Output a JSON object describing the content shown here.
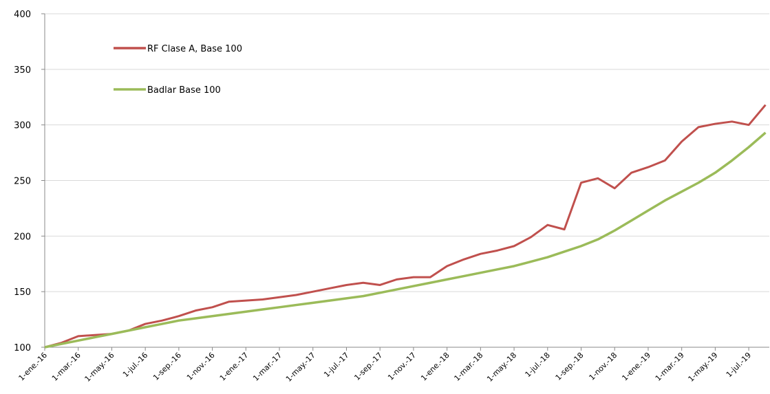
{
  "chart_data": {
    "type": "line",
    "categories": [
      "1-ene.-16",
      null,
      "1-mar.-16",
      null,
      "1-may.-16",
      null,
      "1-jul.-16",
      null,
      "1-sep.-16",
      null,
      "1-nov.-16",
      null,
      "1-ene.-17",
      null,
      "1-mar.-17",
      null,
      "1-may.-17",
      null,
      "1-jul.-17",
      null,
      "1-sep.-17",
      null,
      "1-nov.-17",
      null,
      "1-ene.-18",
      null,
      "1-mar.-18",
      null,
      "1-may.-18",
      null,
      "1-jul.-18",
      null,
      "1-sep.-18",
      null,
      "1-nov.-18",
      null,
      "1-ene.-19",
      null,
      "1-mar.-19",
      null,
      "1-may.-19",
      null,
      "1-jul.-19",
      null
    ],
    "series": [
      {
        "name": "RF Clase A, Base 100",
        "color": "#c0504d",
        "values": [
          100,
          104,
          110,
          111,
          112,
          115,
          121,
          124,
          128,
          133,
          136,
          141,
          142,
          143,
          145,
          147,
          150,
          153,
          156,
          158,
          156,
          161,
          163,
          163,
          173,
          179,
          184,
          187,
          191,
          199,
          210,
          206,
          248,
          252,
          243,
          257,
          262,
          268,
          285,
          298,
          301,
          303,
          300,
          318
        ]
      },
      {
        "name": "Badlar Base 100",
        "color": "#9bbb59",
        "values": [
          100,
          103,
          106,
          109,
          112,
          115,
          118,
          121,
          124,
          126,
          128,
          130,
          132,
          134,
          136,
          138,
          140,
          142,
          144,
          146,
          149,
          152,
          155,
          158,
          161,
          164,
          167,
          170,
          173,
          177,
          181,
          186,
          191,
          197,
          205,
          214,
          223,
          232,
          240,
          248,
          257,
          268,
          280,
          293
        ]
      }
    ],
    "ylim": [
      100,
      400
    ],
    "yticks": [
      100,
      150,
      200,
      250,
      300,
      350,
      400
    ],
    "grid": true,
    "legend": "top-left"
  }
}
